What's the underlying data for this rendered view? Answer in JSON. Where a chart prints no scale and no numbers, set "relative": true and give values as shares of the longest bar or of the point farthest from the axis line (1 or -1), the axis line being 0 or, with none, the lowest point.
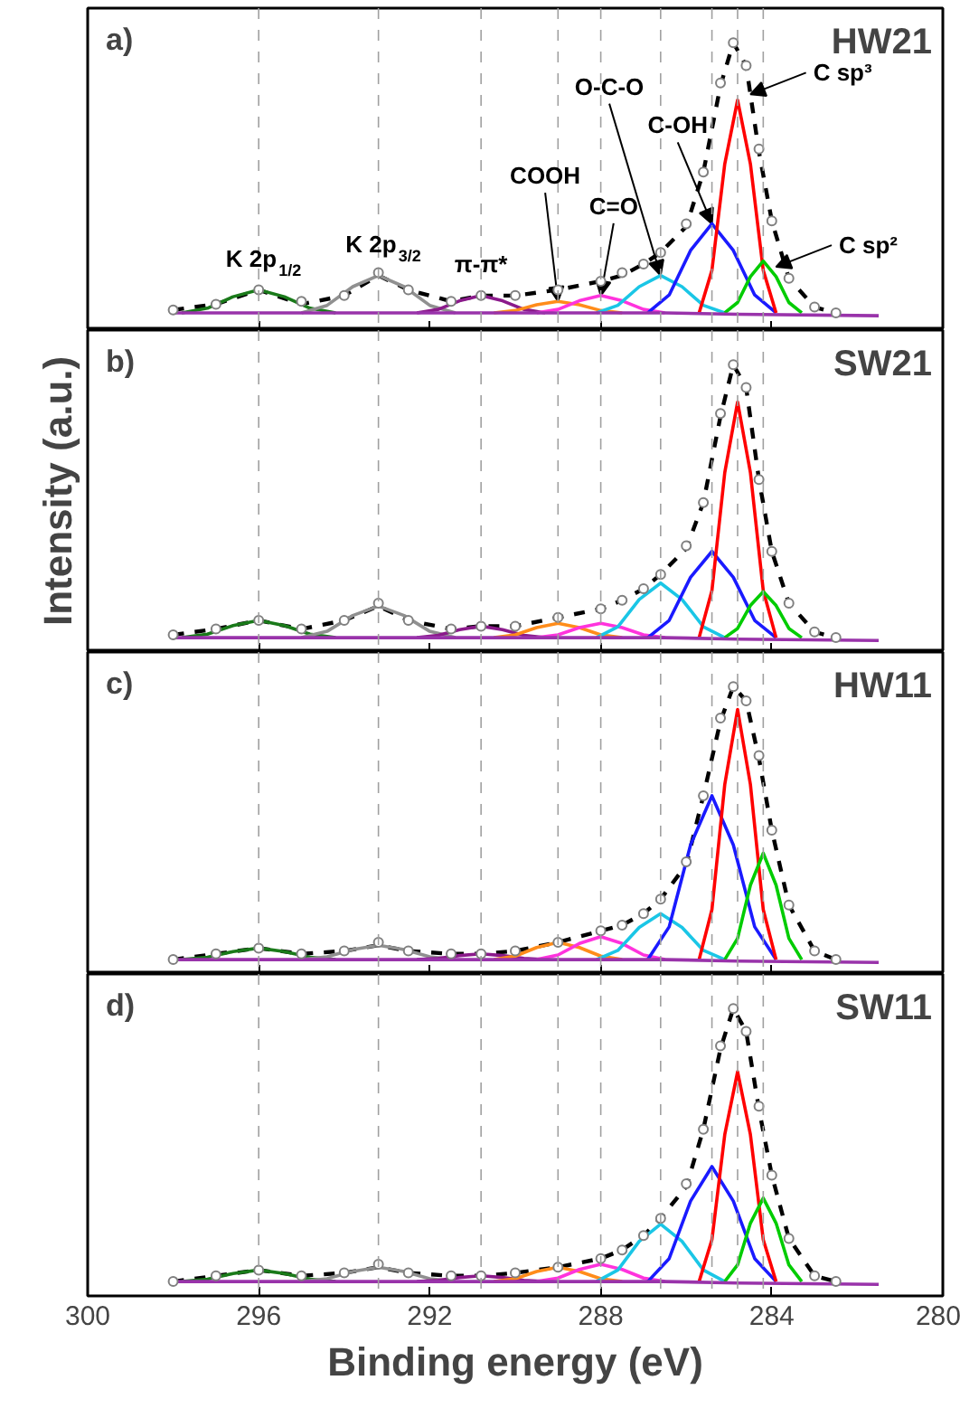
{
  "chart_data": [
    {
      "type": "line",
      "relative": true,
      "xlim": [
        300,
        280
      ],
      "xticks": [
        300,
        296,
        292,
        288,
        284,
        280
      ],
      "tick_labels": false,
      "annotations": [
        "a)",
        "HW21",
        {
          "text": "K 2p$_{1/2}$",
          "x": 296,
          "y": 0.14
        },
        {
          "text": "K 2p$_{3/2}$",
          "x": 293.2,
          "y": 0.19
        },
        {
          "text": "π-π*",
          "x": 290.8,
          "y": 0.12
        },
        {
          "text": "COOH",
          "x": 289,
          "y": 0.1
        },
        {
          "text": "C=O",
          "x": 288,
          "y": 0.12
        },
        {
          "text": "O-C-O",
          "x": 286.6,
          "y": 0.19
        },
        {
          "text": "C-OH",
          "x": 285.4,
          "y": 0.37
        },
        {
          "text": "C sp³",
          "x": 284.5,
          "y": 0.82
        },
        {
          "text": "C sp²",
          "x": 283.9,
          "y": 0.22
        }
      ],
      "ref_lines": [
        {
          "axis": "x",
          "value": 296,
          "color": "#a0a0a0",
          "line_style": "dashed"
        },
        {
          "axis": "x",
          "value": 293.2,
          "color": "#a0a0a0",
          "line_style": "dashed"
        },
        {
          "axis": "x",
          "value": 290.8,
          "color": "#a0a0a0",
          "line_style": "dashed"
        },
        {
          "axis": "x",
          "value": 289,
          "color": "#a0a0a0",
          "line_style": "dashed"
        },
        {
          "axis": "x",
          "value": 288,
          "color": "#a0a0a0",
          "line_style": "dashed"
        },
        {
          "axis": "x",
          "value": 286.6,
          "color": "#a0a0a0",
          "line_style": "dashed"
        },
        {
          "axis": "x",
          "value": 285.4,
          "color": "#a0a0a0",
          "line_style": "dashed"
        },
        {
          "axis": "x",
          "value": 284.8,
          "color": "#a0a0a0",
          "line_style": "dashed"
        },
        {
          "axis": "x",
          "value": 284.2,
          "color": "#a0a0a0",
          "line_style": "dashed"
        }
      ],
      "series": [
        {
          "type": "scatter",
          "marker": "circle",
          "color": "#808080",
          "x": [
            298,
            297,
            296,
            295,
            294,
            293.2,
            292.5,
            291.5,
            290.8,
            290,
            289,
            288,
            287.5,
            287,
            286.6,
            286,
            285.6,
            285.2,
            284.9,
            284.6,
            284.3,
            284,
            283.6,
            283,
            282.5
          ],
          "values": [
            0.07,
            0.09,
            0.14,
            0.1,
            0.12,
            0.2,
            0.14,
            0.1,
            0.12,
            0.12,
            0.14,
            0.17,
            0.2,
            0.23,
            0.27,
            0.37,
            0.55,
            0.86,
            1.0,
            0.92,
            0.63,
            0.38,
            0.18,
            0.08,
            0.06
          ]
        },
        {
          "type": "line",
          "line_style": "dashed",
          "color": "#000000",
          "x": [
            298,
            297,
            296,
            295,
            294,
            293.2,
            292.5,
            291.5,
            290.8,
            290,
            289,
            288,
            287.5,
            287,
            286.6,
            286,
            285.6,
            285.2,
            284.9,
            284.6,
            284.3,
            284,
            283.6,
            283,
            282.5
          ],
          "values": [
            0.07,
            0.09,
            0.14,
            0.09,
            0.12,
            0.19,
            0.14,
            0.1,
            0.12,
            0.12,
            0.14,
            0.17,
            0.19,
            0.23,
            0.27,
            0.36,
            0.55,
            0.85,
            1.0,
            0.92,
            0.62,
            0.38,
            0.18,
            0.08,
            0.06
          ]
        },
        {
          "color": "#1a7a1a",
          "x": [
            297.8,
            297.2,
            296.6,
            296,
            295.4,
            294.8,
            294.2
          ],
          "values": [
            0.06,
            0.076,
            0.116,
            0.14,
            0.116,
            0.076,
            0.06
          ]
        },
        {
          "color": "#909090",
          "x": [
            295,
            294.4,
            293.8,
            293.2,
            292.6,
            292,
            291.4
          ],
          "values": [
            0.06,
            0.086,
            0.151,
            0.19,
            0.151,
            0.086,
            0.06
          ]
        },
        {
          "color": "#8b1a8b",
          "x": [
            292.3,
            291.8,
            291.3,
            290.8,
            290.3,
            289.8,
            289.3
          ],
          "values": [
            0.06,
            0.072,
            0.102,
            0.12,
            0.102,
            0.072,
            0.06
          ]
        },
        {
          "color": "#ff8c1a",
          "x": [
            290.5,
            290,
            289.5,
            289,
            288.5,
            288,
            287.5
          ],
          "values": [
            0.06,
            0.068,
            0.088,
            0.1,
            0.088,
            0.068,
            0.06
          ]
        },
        {
          "color": "#ff33dd",
          "x": [
            289.5,
            289,
            288.5,
            288,
            287.5,
            287,
            286.5
          ],
          "values": [
            0.06,
            0.072,
            0.102,
            0.12,
            0.102,
            0.072,
            0.06
          ]
        },
        {
          "color": "#1ac6e6",
          "x": [
            288.1,
            287.6,
            287.1,
            286.6,
            286.1,
            285.6,
            285.1
          ],
          "values": [
            0.06,
            0.086,
            0.151,
            0.19,
            0.151,
            0.086,
            0.06
          ]
        },
        {
          "color": "#1a1aff",
          "x": [
            286.9,
            286.4,
            285.9,
            285.4,
            284.9,
            284.4,
            283.9
          ],
          "values": [
            0.06,
            0.122,
            0.277,
            0.37,
            0.277,
            0.122,
            0.06
          ]
        },
        {
          "color": "#ff0000",
          "x": [
            285.7,
            285.4,
            285.1,
            284.8,
            284.5,
            284.2,
            283.9
          ],
          "values": [
            0.06,
            0.208,
            0.578,
            0.8,
            0.578,
            0.208,
            0.06
          ]
        },
        {
          "color": "#00cc00",
          "x": [
            285.1,
            284.8,
            284.5,
            284.2,
            283.9,
            283.6,
            283.3
          ],
          "values": [
            0.06,
            0.096,
            0.186,
            0.24,
            0.186,
            0.096,
            0.06
          ]
        },
        {
          "color": "#9933aa",
          "x": [
            298,
            291,
            286.5,
            284.8,
            281.5
          ],
          "values": [
            0.06,
            0.06,
            0.06,
            0.055,
            0.05
          ]
        }
      ]
    },
    {
      "type": "line",
      "relative": true,
      "xlim": [
        300,
        280
      ],
      "xticks": [
        300,
        296,
        292,
        288,
        284,
        280
      ],
      "tick_labels": false,
      "ylabel": "Intensity (a.u.)",
      "annotations": [
        "b)",
        "SW21"
      ],
      "ref_lines": [
        {
          "axis": "x",
          "value": 296,
          "color": "#a0a0a0",
          "line_style": "dashed"
        },
        {
          "axis": "x",
          "value": 293.2,
          "color": "#a0a0a0",
          "line_style": "dashed"
        },
        {
          "axis": "x",
          "value": 290.8,
          "color": "#a0a0a0",
          "line_style": "dashed"
        },
        {
          "axis": "x",
          "value": 289,
          "color": "#a0a0a0",
          "line_style": "dashed"
        },
        {
          "axis": "x",
          "value": 288,
          "color": "#a0a0a0",
          "line_style": "dashed"
        },
        {
          "axis": "x",
          "value": 286.6,
          "color": "#a0a0a0",
          "line_style": "dashed"
        },
        {
          "axis": "x",
          "value": 285.4,
          "color": "#a0a0a0",
          "line_style": "dashed"
        },
        {
          "axis": "x",
          "value": 284.8,
          "color": "#a0a0a0",
          "line_style": "dashed"
        },
        {
          "axis": "x",
          "value": 284.2,
          "color": "#a0a0a0",
          "line_style": "dashed"
        }
      ],
      "series": [
        {
          "type": "scatter",
          "marker": "circle",
          "color": "#808080",
          "x": [
            298,
            297,
            296,
            295,
            294,
            293.2,
            292.5,
            291.5,
            290.8,
            290,
            289,
            288,
            287.5,
            287,
            286.6,
            286,
            285.6,
            285.2,
            284.9,
            284.6,
            284.3,
            284,
            283.6,
            283,
            282.5
          ],
          "values": [
            0.06,
            0.08,
            0.11,
            0.08,
            0.11,
            0.17,
            0.11,
            0.08,
            0.09,
            0.09,
            0.12,
            0.15,
            0.18,
            0.22,
            0.27,
            0.37,
            0.52,
            0.83,
            1.0,
            0.92,
            0.6,
            0.35,
            0.17,
            0.07,
            0.05
          ]
        },
        {
          "type": "line",
          "line_style": "dashed",
          "color": "#000000",
          "x": [
            298,
            297,
            296,
            295,
            294,
            293.2,
            292.5,
            291.5,
            290.8,
            290,
            289,
            288,
            287.5,
            287,
            286.6,
            286,
            285.6,
            285.2,
            284.9,
            284.6,
            284.3,
            284,
            283.6,
            283,
            282.5
          ],
          "values": [
            0.06,
            0.08,
            0.11,
            0.08,
            0.11,
            0.16,
            0.11,
            0.08,
            0.09,
            0.09,
            0.12,
            0.15,
            0.18,
            0.22,
            0.27,
            0.36,
            0.52,
            0.82,
            1.0,
            0.92,
            0.6,
            0.35,
            0.17,
            0.07,
            0.05
          ]
        },
        {
          "color": "#1a7a1a",
          "x": [
            297.8,
            297.2,
            296.6,
            296,
            295.4,
            294.8,
            294.2
          ],
          "values": [
            0.05,
            0.062,
            0.092,
            0.11,
            0.092,
            0.062,
            0.05
          ]
        },
        {
          "color": "#909090",
          "x": [
            295,
            294.4,
            293.8,
            293.2,
            292.6,
            292,
            291.4
          ],
          "values": [
            0.05,
            0.072,
            0.127,
            0.16,
            0.127,
            0.072,
            0.05
          ]
        },
        {
          "color": "#8b1a8b",
          "x": [
            292.3,
            291.8,
            291.3,
            290.8,
            290.3,
            289.8,
            289.3
          ],
          "values": [
            0.05,
            0.058,
            0.078,
            0.09,
            0.078,
            0.058,
            0.05
          ]
        },
        {
          "color": "#ff8c1a",
          "x": [
            290.5,
            290,
            289.5,
            289,
            288.5,
            288,
            287.5
          ],
          "values": [
            0.05,
            0.06,
            0.085,
            0.1,
            0.085,
            0.06,
            0.05
          ]
        },
        {
          "color": "#ff33dd",
          "x": [
            289.5,
            289,
            288.5,
            288,
            287.5,
            287,
            286.5
          ],
          "values": [
            0.05,
            0.06,
            0.085,
            0.1,
            0.085,
            0.06,
            0.05
          ]
        },
        {
          "color": "#1ac6e6",
          "x": [
            288.1,
            287.6,
            287.1,
            286.6,
            286.1,
            285.6,
            285.1
          ],
          "values": [
            0.05,
            0.088,
            0.183,
            0.24,
            0.183,
            0.088,
            0.05
          ]
        },
        {
          "color": "#1a1aff",
          "x": [
            286.9,
            286.4,
            285.9,
            285.4,
            284.9,
            284.4,
            283.9
          ],
          "values": [
            0.05,
            0.11,
            0.26,
            0.35,
            0.26,
            0.11,
            0.05
          ]
        },
        {
          "color": "#ff0000",
          "x": [
            285.7,
            285.4,
            285.1,
            284.8,
            284.5,
            284.2,
            283.9
          ],
          "values": [
            0.05,
            0.214,
            0.624,
            0.87,
            0.624,
            0.214,
            0.05
          ]
        },
        {
          "color": "#00cc00",
          "x": [
            285.1,
            284.8,
            284.5,
            284.2,
            283.9,
            283.6,
            283.3
          ],
          "values": [
            0.05,
            0.082,
            0.162,
            0.21,
            0.162,
            0.082,
            0.05
          ]
        },
        {
          "color": "#9933aa",
          "x": [
            298,
            291,
            286.5,
            284.8,
            281.5
          ],
          "values": [
            0.05,
            0.05,
            0.05,
            0.045,
            0.04
          ]
        }
      ]
    },
    {
      "type": "line",
      "relative": true,
      "xlim": [
        300,
        280
      ],
      "xticks": [
        300,
        296,
        292,
        288,
        284,
        280
      ],
      "tick_labels": false,
      "annotations": [
        "c)",
        "HW11"
      ],
      "ref_lines": [
        {
          "axis": "x",
          "value": 296,
          "color": "#a0a0a0",
          "line_style": "dashed"
        },
        {
          "axis": "x",
          "value": 293.2,
          "color": "#a0a0a0",
          "line_style": "dashed"
        },
        {
          "axis": "x",
          "value": 290.8,
          "color": "#a0a0a0",
          "line_style": "dashed"
        },
        {
          "axis": "x",
          "value": 289,
          "color": "#a0a0a0",
          "line_style": "dashed"
        },
        {
          "axis": "x",
          "value": 288,
          "color": "#a0a0a0",
          "line_style": "dashed"
        },
        {
          "axis": "x",
          "value": 286.6,
          "color": "#a0a0a0",
          "line_style": "dashed"
        },
        {
          "axis": "x",
          "value": 285.4,
          "color": "#a0a0a0",
          "line_style": "dashed"
        },
        {
          "axis": "x",
          "value": 284.8,
          "color": "#a0a0a0",
          "line_style": "dashed"
        },
        {
          "axis": "x",
          "value": 284.2,
          "color": "#a0a0a0",
          "line_style": "dashed"
        }
      ],
      "series": [
        {
          "type": "scatter",
          "marker": "circle",
          "color": "#808080",
          "x": [
            298,
            297,
            296,
            295,
            294,
            293.2,
            292.5,
            291.5,
            290.8,
            290,
            289,
            288,
            287.5,
            287,
            286.6,
            286,
            285.6,
            285.2,
            284.9,
            284.6,
            284.3,
            284,
            283.6,
            283,
            282.5
          ],
          "values": [
            0.05,
            0.07,
            0.09,
            0.07,
            0.08,
            0.11,
            0.08,
            0.07,
            0.07,
            0.08,
            0.11,
            0.15,
            0.17,
            0.21,
            0.26,
            0.39,
            0.62,
            0.89,
            1.0,
            0.95,
            0.76,
            0.5,
            0.24,
            0.08,
            0.05
          ]
        },
        {
          "type": "line",
          "line_style": "dashed",
          "color": "#000000",
          "x": [
            298,
            297,
            296,
            295,
            294,
            293.2,
            292.5,
            291.5,
            290.8,
            290,
            289,
            288,
            287.5,
            287,
            286.6,
            286,
            285.6,
            285.2,
            284.9,
            284.6,
            284.3,
            284,
            283.6,
            283,
            282.5
          ],
          "values": [
            0.05,
            0.07,
            0.09,
            0.07,
            0.08,
            0.1,
            0.08,
            0.07,
            0.07,
            0.08,
            0.11,
            0.15,
            0.17,
            0.21,
            0.26,
            0.38,
            0.62,
            0.88,
            1.0,
            0.95,
            0.75,
            0.5,
            0.24,
            0.08,
            0.05
          ]
        },
        {
          "color": "#1a7a1a",
          "x": [
            297.8,
            297.2,
            296.6,
            296,
            295.4,
            294.8,
            294.2
          ],
          "values": [
            0.05,
            0.058,
            0.078,
            0.09,
            0.078,
            0.058,
            0.05
          ]
        },
        {
          "color": "#909090",
          "x": [
            295,
            294.4,
            293.8,
            293.2,
            292.6,
            292,
            291.4
          ],
          "values": [
            0.05,
            0.06,
            0.085,
            0.1,
            0.085,
            0.06,
            0.05
          ]
        },
        {
          "color": "#8b1a8b",
          "x": [
            292.3,
            291.8,
            291.3,
            290.8,
            290.3,
            289.8,
            289.3
          ],
          "values": [
            0.05,
            0.054,
            0.064,
            0.07,
            0.064,
            0.054,
            0.05
          ]
        },
        {
          "color": "#ff8c1a",
          "x": [
            290.5,
            290,
            289.5,
            289,
            288.5,
            288,
            287.5
          ],
          "values": [
            0.05,
            0.062,
            0.092,
            0.11,
            0.092,
            0.062,
            0.05
          ]
        },
        {
          "color": "#ff33dd",
          "x": [
            289.5,
            289,
            288.5,
            288,
            287.5,
            287,
            286.5
          ],
          "values": [
            0.05,
            0.066,
            0.106,
            0.13,
            0.106,
            0.066,
            0.05
          ]
        },
        {
          "color": "#1ac6e6",
          "x": [
            288.1,
            287.6,
            287.1,
            286.6,
            286.1,
            285.6,
            285.1
          ],
          "values": [
            0.05,
            0.082,
            0.162,
            0.21,
            0.162,
            0.082,
            0.05
          ]
        },
        {
          "color": "#1a1aff",
          "x": [
            286.9,
            286.4,
            285.9,
            285.4,
            284.9,
            284.4,
            283.9
          ],
          "values": [
            0.05,
            0.164,
            0.449,
            0.62,
            0.449,
            0.164,
            0.05
          ]
        },
        {
          "color": "#ff0000",
          "x": [
            285.7,
            285.4,
            285.1,
            284.8,
            284.5,
            284.2,
            283.9
          ],
          "values": [
            0.05,
            0.224,
            0.659,
            0.92,
            0.659,
            0.224,
            0.05
          ]
        },
        {
          "color": "#00cc00",
          "x": [
            285.1,
            284.8,
            284.5,
            284.2,
            283.9,
            283.6,
            283.3
          ],
          "values": [
            0.05,
            0.124,
            0.309,
            0.42,
            0.309,
            0.124,
            0.05
          ]
        },
        {
          "color": "#9933aa",
          "x": [
            298,
            291,
            286.5,
            284.8,
            281.5
          ],
          "values": [
            0.05,
            0.05,
            0.05,
            0.045,
            0.04
          ]
        }
      ]
    },
    {
      "type": "line",
      "relative": true,
      "xlim": [
        300,
        280
      ],
      "xticks": [
        300,
        296,
        292,
        288,
        284,
        280
      ],
      "tick_labels": "x",
      "xlabel": "Binding energy (eV)",
      "annotations": [
        "d)",
        "SW11"
      ],
      "ref_lines": [
        {
          "axis": "x",
          "value": 296,
          "color": "#a0a0a0",
          "line_style": "dashed"
        },
        {
          "axis": "x",
          "value": 293.2,
          "color": "#a0a0a0",
          "line_style": "dashed"
        },
        {
          "axis": "x",
          "value": 290.8,
          "color": "#a0a0a0",
          "line_style": "dashed"
        },
        {
          "axis": "x",
          "value": 289,
          "color": "#a0a0a0",
          "line_style": "dashed"
        },
        {
          "axis": "x",
          "value": 288,
          "color": "#a0a0a0",
          "line_style": "dashed"
        },
        {
          "axis": "x",
          "value": 286.6,
          "color": "#a0a0a0",
          "line_style": "dashed"
        },
        {
          "axis": "x",
          "value": 285.4,
          "color": "#a0a0a0",
          "line_style": "dashed"
        },
        {
          "axis": "x",
          "value": 284.8,
          "color": "#a0a0a0",
          "line_style": "dashed"
        },
        {
          "axis": "x",
          "value": 284.2,
          "color": "#a0a0a0",
          "line_style": "dashed"
        }
      ],
      "series": [
        {
          "type": "scatter",
          "marker": "circle",
          "color": "#808080",
          "x": [
            298,
            297,
            296,
            295,
            294,
            293.2,
            292.5,
            291.5,
            290.8,
            290,
            289,
            288,
            287.5,
            287,
            286.6,
            286,
            285.6,
            285.2,
            284.9,
            284.6,
            284.3,
            284,
            283.6,
            283,
            282.5
          ],
          "values": [
            0.05,
            0.07,
            0.09,
            0.07,
            0.08,
            0.11,
            0.08,
            0.07,
            0.07,
            0.08,
            0.1,
            0.13,
            0.16,
            0.21,
            0.27,
            0.39,
            0.58,
            0.87,
            1.0,
            0.92,
            0.66,
            0.42,
            0.2,
            0.07,
            0.05
          ]
        },
        {
          "type": "line",
          "line_style": "dashed",
          "color": "#000000",
          "x": [
            298,
            297,
            296,
            295,
            294,
            293.2,
            292.5,
            291.5,
            290.8,
            290,
            289,
            288,
            287.5,
            287,
            286.6,
            286,
            285.6,
            285.2,
            284.9,
            284.6,
            284.3,
            284,
            283.6,
            283,
            282.5
          ],
          "values": [
            0.05,
            0.07,
            0.09,
            0.07,
            0.08,
            0.1,
            0.08,
            0.07,
            0.07,
            0.08,
            0.1,
            0.13,
            0.16,
            0.21,
            0.27,
            0.38,
            0.58,
            0.86,
            1.0,
            0.92,
            0.65,
            0.42,
            0.2,
            0.07,
            0.05
          ]
        },
        {
          "color": "#1a7a1a",
          "x": [
            297.8,
            297.2,
            296.6,
            296,
            295.4,
            294.8,
            294.2
          ],
          "values": [
            0.05,
            0.058,
            0.078,
            0.09,
            0.078,
            0.058,
            0.05
          ]
        },
        {
          "color": "#909090",
          "x": [
            295,
            294.4,
            293.8,
            293.2,
            292.6,
            292,
            291.4
          ],
          "values": [
            0.05,
            0.06,
            0.085,
            0.1,
            0.085,
            0.06,
            0.05
          ]
        },
        {
          "color": "#8b1a8b",
          "x": [
            292.3,
            291.8,
            291.3,
            290.8,
            290.3,
            289.8,
            289.3
          ],
          "values": [
            0.05,
            0.054,
            0.064,
            0.07,
            0.064,
            0.054,
            0.05
          ]
        },
        {
          "color": "#ff8c1a",
          "x": [
            290.5,
            290,
            289.5,
            289,
            288.5,
            288,
            287.5
          ],
          "values": [
            0.05,
            0.06,
            0.085,
            0.1,
            0.085,
            0.06,
            0.05
          ]
        },
        {
          "color": "#ff33dd",
          "x": [
            289.5,
            289,
            288.5,
            288,
            287.5,
            287,
            286.5
          ],
          "values": [
            0.05,
            0.062,
            0.092,
            0.11,
            0.092,
            0.062,
            0.05
          ]
        },
        {
          "color": "#1ac6e6",
          "x": [
            288.1,
            287.6,
            287.1,
            286.6,
            286.1,
            285.6,
            285.1
          ],
          "values": [
            0.05,
            0.09,
            0.19,
            0.25,
            0.19,
            0.09,
            0.05
          ]
        },
        {
          "color": "#1a1aff",
          "x": [
            286.9,
            286.4,
            285.9,
            285.4,
            284.9,
            284.4,
            283.9
          ],
          "values": [
            0.05,
            0.13,
            0.33,
            0.45,
            0.33,
            0.13,
            0.05
          ]
        },
        {
          "color": "#ff0000",
          "x": [
            285.7,
            285.4,
            285.1,
            284.8,
            284.5,
            284.2,
            283.9
          ],
          "values": [
            0.05,
            0.196,
            0.561,
            0.78,
            0.561,
            0.196,
            0.05
          ]
        },
        {
          "color": "#00cc00",
          "x": [
            285.1,
            284.8,
            284.5,
            284.2,
            283.9,
            283.6,
            283.3
          ],
          "values": [
            0.05,
            0.108,
            0.253,
            0.34,
            0.253,
            0.108,
            0.05
          ]
        },
        {
          "color": "#9933aa",
          "x": [
            298,
            291,
            286.5,
            284.8,
            281.5
          ],
          "values": [
            0.05,
            0.05,
            0.05,
            0.045,
            0.04
          ]
        }
      ]
    }
  ]
}
